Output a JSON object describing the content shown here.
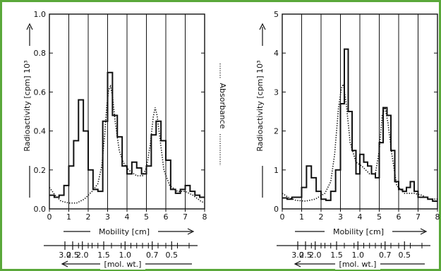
{
  "colors": {
    "frame": "#5aa83a",
    "ink": "#111111",
    "background": "#ffffff"
  },
  "chart_data": [
    {
      "type": "line",
      "panel": "left",
      "xlabel": "Mobility [cm]",
      "ylabel": "Radioactivity [cpm] 10³",
      "right_label": "Absorbance",
      "xlim": [
        0,
        8
      ],
      "ylim": [
        0,
        1.0
      ],
      "x_ticks": [
        "0",
        "1",
        "2",
        "3",
        "4",
        "5",
        "6",
        "7",
        "8"
      ],
      "y_ticks": [
        "0.0",
        "0.2",
        "0.4",
        "0.6",
        "0.8",
        "1.0"
      ],
      "grid": true,
      "mw_label": "[mol. wt.]",
      "mw_ticks": [
        {
          "label": "3.0",
          "x": 0.8
        },
        {
          "label": "2.5",
          "x": 1.2
        },
        {
          "label": "2.0",
          "x": 1.7
        },
        {
          "label": "1.5",
          "x": 2.8
        },
        {
          "label": "1.0",
          "x": 3.9
        },
        {
          "label": "0.7",
          "x": 5.3
        },
        {
          "label": "0.5",
          "x": 6.3
        }
      ],
      "mw_minor_ticks": [
        1.2,
        1.5,
        2.0,
        2.2,
        2.5,
        3.2,
        3.7,
        4.2,
        4.5,
        4.8,
        5.1,
        5.6,
        6.0,
        6.6,
        7.2
      ],
      "series": [
        {
          "style": "solid-step",
          "values": [
            [
              0,
              0.07
            ],
            [
              0.25,
              0.06
            ],
            [
              0.5,
              0.07
            ],
            [
              0.75,
              0.12
            ],
            [
              1.0,
              0.22
            ],
            [
              1.25,
              0.35
            ],
            [
              1.5,
              0.56
            ],
            [
              1.75,
              0.4
            ],
            [
              2.0,
              0.2
            ],
            [
              2.25,
              0.1
            ],
            [
              2.5,
              0.09
            ],
            [
              2.75,
              0.45
            ],
            [
              3.0,
              0.7
            ],
            [
              3.25,
              0.48
            ],
            [
              3.5,
              0.37
            ],
            [
              3.75,
              0.22
            ],
            [
              4.0,
              0.18
            ],
            [
              4.25,
              0.24
            ],
            [
              4.5,
              0.21
            ],
            [
              4.75,
              0.18
            ],
            [
              5.0,
              0.22
            ],
            [
              5.25,
              0.38
            ],
            [
              5.5,
              0.45
            ],
            [
              5.75,
              0.35
            ],
            [
              6.0,
              0.25
            ],
            [
              6.25,
              0.1
            ],
            [
              6.5,
              0.08
            ],
            [
              6.75,
              0.1
            ],
            [
              7.0,
              0.12
            ],
            [
              7.25,
              0.09
            ],
            [
              7.5,
              0.07
            ],
            [
              7.75,
              0.06
            ],
            [
              8.0,
              0.06
            ]
          ]
        },
        {
          "style": "dotted",
          "values": [
            [
              0,
              0.11
            ],
            [
              0.3,
              0.07
            ],
            [
              0.6,
              0.04
            ],
            [
              1.0,
              0.03
            ],
            [
              1.4,
              0.03
            ],
            [
              1.8,
              0.05
            ],
            [
              2.2,
              0.09
            ],
            [
              2.5,
              0.13
            ],
            [
              2.7,
              0.22
            ],
            [
              2.85,
              0.38
            ],
            [
              2.95,
              0.52
            ],
            [
              3.05,
              0.61
            ],
            [
              3.15,
              0.63
            ],
            [
              3.25,
              0.58
            ],
            [
              3.4,
              0.44
            ],
            [
              3.6,
              0.3
            ],
            [
              3.8,
              0.24
            ],
            [
              4.0,
              0.21
            ],
            [
              4.2,
              0.19
            ],
            [
              4.5,
              0.17
            ],
            [
              4.8,
              0.17
            ],
            [
              5.0,
              0.21
            ],
            [
              5.2,
              0.33
            ],
            [
              5.35,
              0.47
            ],
            [
              5.45,
              0.52
            ],
            [
              5.55,
              0.48
            ],
            [
              5.7,
              0.36
            ],
            [
              5.9,
              0.2
            ],
            [
              6.2,
              0.12
            ],
            [
              6.6,
              0.09
            ],
            [
              7.0,
              0.09
            ],
            [
              7.4,
              0.07
            ],
            [
              7.8,
              0.04
            ],
            [
              8.0,
              0.03
            ]
          ]
        }
      ]
    },
    {
      "type": "line",
      "panel": "right",
      "xlabel": "Mobility [cm]",
      "ylabel": "Radioactivity [cpm] 10³",
      "xlim": [
        0,
        8
      ],
      "ylim": [
        0,
        5
      ],
      "x_ticks": [
        "0",
        "1",
        "2",
        "3",
        "4",
        "5",
        "6",
        "7",
        "8"
      ],
      "y_ticks": [
        "0",
        "1",
        "2",
        "3",
        "4",
        "5"
      ],
      "grid": true,
      "mw_label": "[mol. wt.]",
      "mw_ticks": [
        {
          "label": "3.0",
          "x": 0.8
        },
        {
          "label": "2.5",
          "x": 1.2
        },
        {
          "label": "2.0",
          "x": 1.7
        },
        {
          "label": "1.5",
          "x": 2.8
        },
        {
          "label": "1.0",
          "x": 3.9
        },
        {
          "label": "0.7",
          "x": 5.3
        },
        {
          "label": "0.5",
          "x": 6.3
        }
      ],
      "mw_minor_ticks": [
        1.2,
        1.5,
        2.0,
        2.2,
        2.5,
        3.2,
        3.7,
        4.2,
        4.5,
        4.8,
        5.1,
        5.6,
        6.0,
        6.6,
        7.2
      ],
      "series": [
        {
          "style": "solid-step",
          "values": [
            [
              0,
              0.28
            ],
            [
              0.25,
              0.25
            ],
            [
              0.5,
              0.3
            ],
            [
              0.75,
              0.3
            ],
            [
              1.0,
              0.55
            ],
            [
              1.25,
              1.1
            ],
            [
              1.5,
              0.8
            ],
            [
              1.75,
              0.45
            ],
            [
              2.0,
              0.25
            ],
            [
              2.25,
              0.22
            ],
            [
              2.5,
              0.45
            ],
            [
              2.75,
              1.0
            ],
            [
              3.0,
              2.7
            ],
            [
              3.2,
              4.1
            ],
            [
              3.4,
              2.5
            ],
            [
              3.6,
              1.5
            ],
            [
              3.8,
              0.9
            ],
            [
              4.0,
              1.4
            ],
            [
              4.2,
              1.2
            ],
            [
              4.4,
              1.1
            ],
            [
              4.6,
              0.9
            ],
            [
              4.8,
              0.8
            ],
            [
              5.0,
              1.7
            ],
            [
              5.2,
              2.6
            ],
            [
              5.4,
              2.4
            ],
            [
              5.6,
              1.5
            ],
            [
              5.8,
              0.7
            ],
            [
              6.0,
              0.5
            ],
            [
              6.2,
              0.45
            ],
            [
              6.4,
              0.55
            ],
            [
              6.6,
              0.7
            ],
            [
              6.8,
              0.45
            ],
            [
              7.0,
              0.3
            ],
            [
              7.25,
              0.3
            ],
            [
              7.5,
              0.25
            ],
            [
              7.75,
              0.2
            ],
            [
              8.0,
              0.2
            ]
          ]
        },
        {
          "style": "dotted",
          "values": [
            [
              0,
              0.4
            ],
            [
              0.3,
              0.3
            ],
            [
              0.7,
              0.22
            ],
            [
              1.2,
              0.2
            ],
            [
              1.7,
              0.25
            ],
            [
              2.2,
              0.4
            ],
            [
              2.5,
              0.7
            ],
            [
              2.7,
              1.4
            ],
            [
              2.9,
              2.6
            ],
            [
              3.05,
              3.1
            ],
            [
              3.15,
              3.2
            ],
            [
              3.3,
              2.7
            ],
            [
              3.5,
              1.7
            ],
            [
              3.8,
              1.2
            ],
            [
              4.1,
              1.1
            ],
            [
              4.5,
              0.9
            ],
            [
              4.8,
              0.9
            ],
            [
              5.0,
              1.5
            ],
            [
              5.15,
              2.4
            ],
            [
              5.3,
              2.6
            ],
            [
              5.45,
              2.2
            ],
            [
              5.65,
              1.4
            ],
            [
              5.9,
              0.6
            ],
            [
              6.3,
              0.4
            ],
            [
              6.8,
              0.4
            ],
            [
              7.2,
              0.35
            ],
            [
              7.6,
              0.25
            ],
            [
              8.0,
              0.25
            ]
          ]
        }
      ]
    }
  ]
}
